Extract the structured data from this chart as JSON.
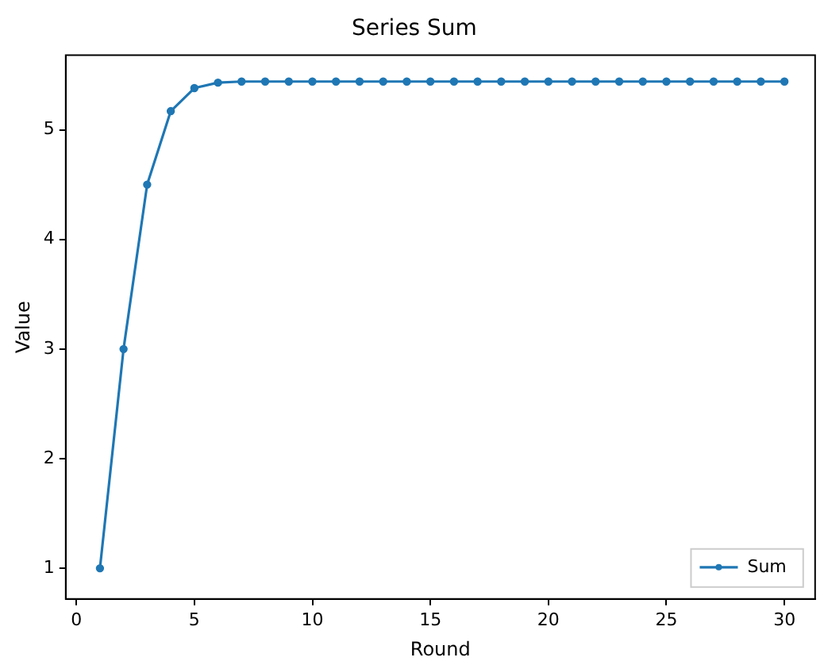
{
  "chart_data": {
    "type": "line",
    "title": "Series Sum",
    "xlabel": "Round",
    "ylabel": "Value",
    "x": [
      1,
      2,
      3,
      4,
      5,
      6,
      7,
      8,
      9,
      10,
      11,
      12,
      13,
      14,
      15,
      16,
      17,
      18,
      19,
      20,
      21,
      22,
      23,
      24,
      25,
      26,
      27,
      28,
      29,
      30
    ],
    "series": [
      {
        "name": "Sum",
        "color": "#1f77b4",
        "values": [
          1,
          3,
          4.5,
          5.17,
          5.38,
          5.43,
          5.44,
          5.44,
          5.44,
          5.44,
          5.44,
          5.44,
          5.44,
          5.44,
          5.44,
          5.44,
          5.44,
          5.44,
          5.44,
          5.44,
          5.44,
          5.44,
          5.44,
          5.44,
          5.44,
          5.44,
          5.44,
          5.44,
          5.44,
          5.44
        ]
      }
    ],
    "xlim": [
      -0.45,
      31.3
    ],
    "ylim": [
      0.72,
      5.68
    ],
    "xticks": [
      0,
      5,
      10,
      15,
      20,
      25,
      30
    ],
    "yticks": [
      1,
      2,
      3,
      4,
      5
    ],
    "grid": false,
    "legend": "bottom right",
    "marker": "circle",
    "line_style": "solid"
  }
}
